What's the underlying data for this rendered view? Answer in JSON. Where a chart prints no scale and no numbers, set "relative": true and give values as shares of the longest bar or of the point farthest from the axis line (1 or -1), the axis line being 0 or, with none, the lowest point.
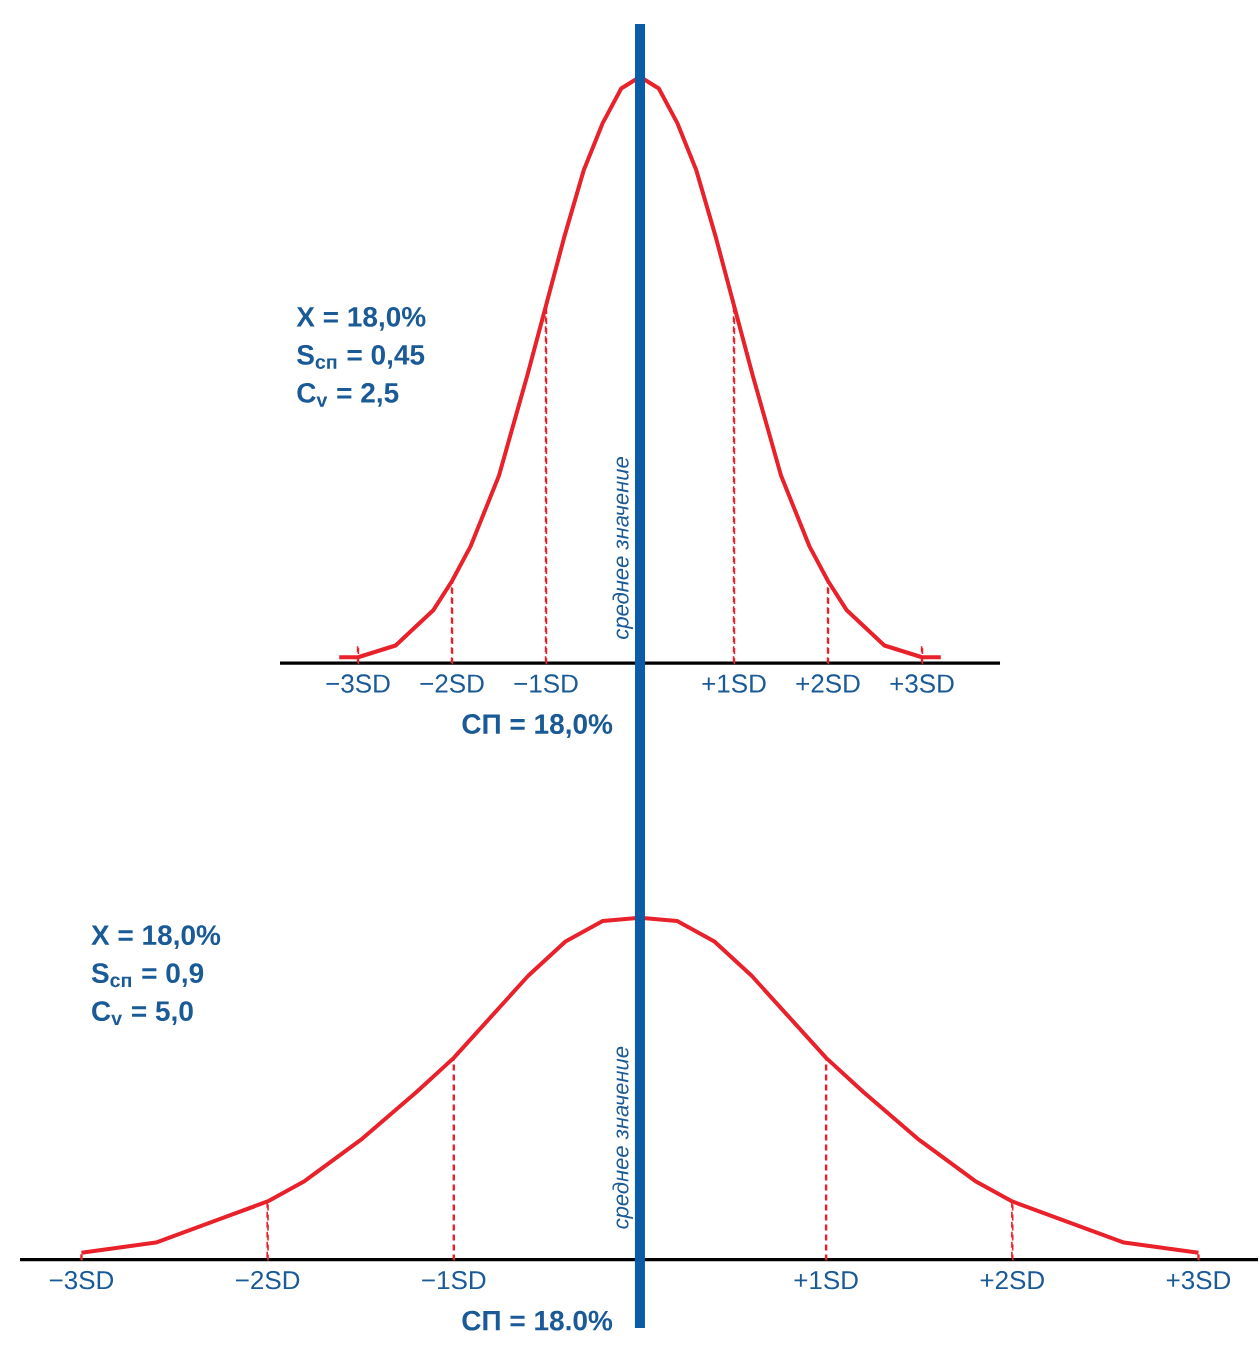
{
  "chart_data": [
    {
      "type": "line",
      "relative": true,
      "xlim": [
        -3.83,
        3.83
      ],
      "xticks": [
        {
          "value": -3,
          "label": "−3SD"
        },
        {
          "value": -2,
          "label": "−2SD"
        },
        {
          "value": -1,
          "label": "−1SD"
        },
        {
          "value": 1,
          "label": "+1SD"
        },
        {
          "value": 2,
          "label": "+2SD"
        },
        {
          "value": 3,
          "label": "+3SD"
        }
      ],
      "xlabel": "СП = 18,0%",
      "x": [
        -3.2,
        -3,
        -2.6,
        -2.2,
        -2,
        -1.8,
        -1.5,
        -1.2,
        -1,
        -0.8,
        -0.6,
        -0.4,
        -0.2,
        0,
        0.2,
        0.4,
        0.6,
        0.8,
        1,
        1.2,
        1.5,
        1.8,
        2,
        2.2,
        2.6,
        3,
        3.2
      ],
      "series": [
        {
          "color": "#e8212a",
          "values": [
            0.01,
            0.01,
            0.03,
            0.09,
            0.14,
            0.2,
            0.32,
            0.49,
            0.61,
            0.73,
            0.84,
            0.92,
            0.98,
            1,
            0.98,
            0.92,
            0.84,
            0.73,
            0.61,
            0.49,
            0.32,
            0.2,
            0.14,
            0.09,
            0.03,
            0.01,
            0.01
          ]
        },
        {
          "type": "bar",
          "line_style": "dashed",
          "color": "#e8212a",
          "x": [
            -3,
            -2,
            -1,
            1,
            2,
            3
          ],
          "values": [
            0.03,
            0.14,
            0.61,
            0.61,
            0.14,
            0.03
          ]
        }
      ],
      "annotations": [
        "X = 18,0%",
        "S$_{сп}$ = 0,45",
        "C$_{v}$ = 2,5"
      ],
      "ref_lines": [
        {
          "axis": "x",
          "value": 0,
          "label": "среднее значение",
          "color": "#0b5ca8"
        }
      ]
    },
    {
      "type": "line",
      "relative": true,
      "xlim": [
        -3.33,
        3.32
      ],
      "xticks": [
        {
          "value": -3,
          "label": "−3SD"
        },
        {
          "value": -2,
          "label": "−2SD"
        },
        {
          "value": -1,
          "label": "−1SD"
        },
        {
          "value": 1,
          "label": "+1SD"
        },
        {
          "value": 2,
          "label": "+2SD"
        },
        {
          "value": 3,
          "label": "+3SD"
        }
      ],
      "xlabel": "СП = 18.0%",
      "x": [
        -3,
        -2.6,
        -2.2,
        -2,
        -1.8,
        -1.5,
        -1.2,
        -1,
        -0.8,
        -0.6,
        -0.4,
        -0.2,
        0,
        0.2,
        0.4,
        0.6,
        0.8,
        1,
        1.2,
        1.5,
        1.8,
        2,
        2.2,
        2.6,
        3
      ],
      "series": [
        {
          "color": "#e8212a",
          "values": [
            0.02,
            0.05,
            0.13,
            0.17,
            0.23,
            0.35,
            0.49,
            0.59,
            0.71,
            0.83,
            0.93,
            0.99,
            1,
            0.99,
            0.93,
            0.83,
            0.71,
            0.59,
            0.49,
            0.35,
            0.23,
            0.17,
            0.13,
            0.05,
            0.02
          ]
        },
        {
          "type": "bar",
          "line_style": "dashed",
          "color": "#e8212a",
          "x": [
            -3,
            -2,
            -1,
            1,
            2,
            3
          ],
          "values": [
            0.02,
            0.17,
            0.59,
            0.59,
            0.17,
            0.02
          ]
        }
      ],
      "annotations": [
        "X = 18,0%",
        "S$_{сп}$ = 0,9",
        "C$_{v}$ = 5,0"
      ],
      "ref_lines": [
        {
          "axis": "x",
          "value": 0,
          "label": "среднее значение",
          "color": "#0b5ca8"
        }
      ]
    }
  ]
}
